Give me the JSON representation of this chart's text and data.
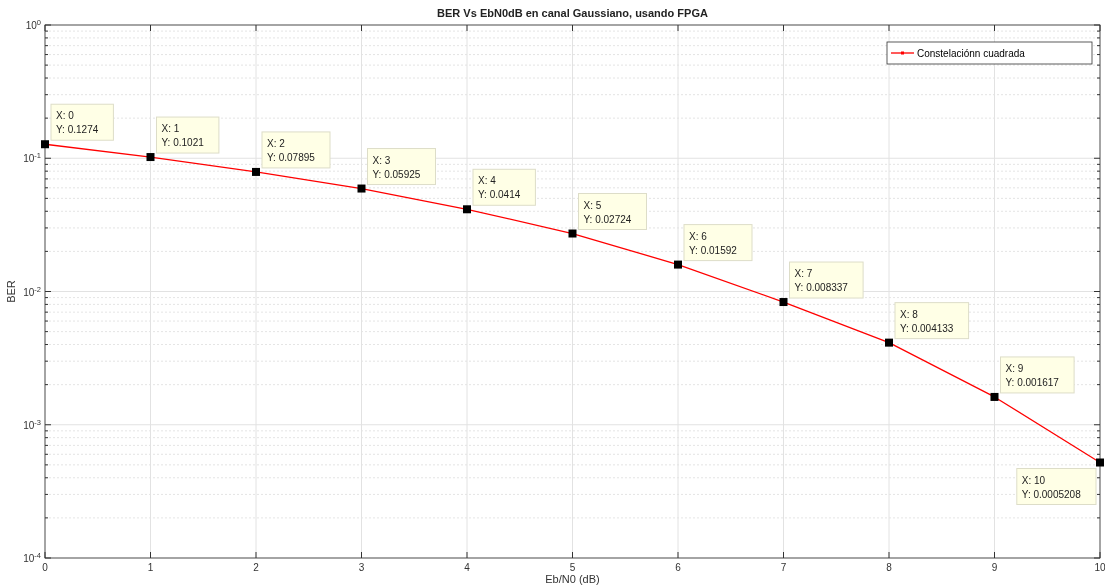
{
  "chart_data": {
    "type": "line",
    "title": "BER Vs EbN0dB en canal Gaussiano, usando FPGA",
    "xlabel": "Eb/N0 (dB)",
    "ylabel": "BER",
    "x": [
      0,
      1,
      2,
      3,
      4,
      5,
      6,
      7,
      8,
      9,
      10
    ],
    "series": [
      {
        "name": "Constelaciónn cuadrada",
        "color": "#ff0000",
        "values": [
          0.1274,
          0.1021,
          0.07895,
          0.05925,
          0.0414,
          0.02724,
          0.01592,
          0.008337,
          0.004133,
          0.001617,
          0.0005208
        ],
        "value_labels": [
          "X: 0\nY: 0.1274",
          "X: 1\nY: 0.1021",
          "X: 2\nY: 0.07895",
          "X: 3\nY: 0.05925",
          "X: 4\nY: 0.0414",
          "X: 5\nY: 0.02724",
          "X: 6\nY: 0.01592",
          "X: 7\nY: 0.008337",
          "X: 8\nY: 0.004133",
          "X: 9\nY: 0.001617",
          "X: 10\nY: 0.0005208"
        ]
      }
    ],
    "xlim": [
      0,
      10
    ],
    "xticks": [
      0,
      1,
      2,
      3,
      4,
      5,
      6,
      7,
      8,
      9,
      10
    ],
    "ylim": [
      0.0001,
      1
    ],
    "yticks": [
      {
        "value": 0.0001,
        "label": "10$^{-4}$"
      },
      {
        "value": 0.001,
        "label": "10$^{-3}$"
      },
      {
        "value": 0.01,
        "label": "10$^{-2}$"
      },
      {
        "value": 0.1,
        "label": "10$^{-1}$"
      },
      {
        "value": 1,
        "label": "10$^{0}$"
      }
    ],
    "log": "y",
    "grid": true,
    "legend": "top right",
    "marker": "square",
    "line_style": "solid"
  }
}
